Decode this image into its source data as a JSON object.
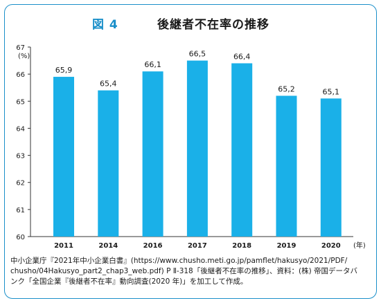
{
  "header": {
    "figure_label": "図 4",
    "title": "後継者不在率の推移"
  },
  "chart_data": {
    "type": "bar",
    "title": "後継者不在率の推移",
    "categories": [
      "2011",
      "2014",
      "2016",
      "2017",
      "2018",
      "2019",
      "2020"
    ],
    "values": [
      65.9,
      65.4,
      66.1,
      66.5,
      66.4,
      65.2,
      65.1
    ],
    "data_labels": [
      "65,9",
      "65,4",
      "66,1",
      "66,5",
      "66,4",
      "65,2",
      "65,1"
    ],
    "y_ticks": [
      "60",
      "61",
      "62",
      "63",
      "64",
      "65",
      "66",
      "67"
    ],
    "ylim": [
      60,
      67
    ],
    "y_unit": "(%)",
    "x_unit": "(年)",
    "grid": false,
    "bar_color": "#1ab0e8"
  },
  "source": {
    "line1": "中小企業庁『2021年中小企業白書』(https://www.chusho.meti.go.jp/pamflet/hakusyo/2021/PDF/",
    "line2": "chusho/04Hakusyo_part2_chap3_web.pdf) P Ⅱ-318「後継者不在率の推移」、資料：(株) 帝国データバ",
    "line3": "ンク「全国企業『後継者不在率』動向調査(2020 年)」を加工して作成。"
  }
}
